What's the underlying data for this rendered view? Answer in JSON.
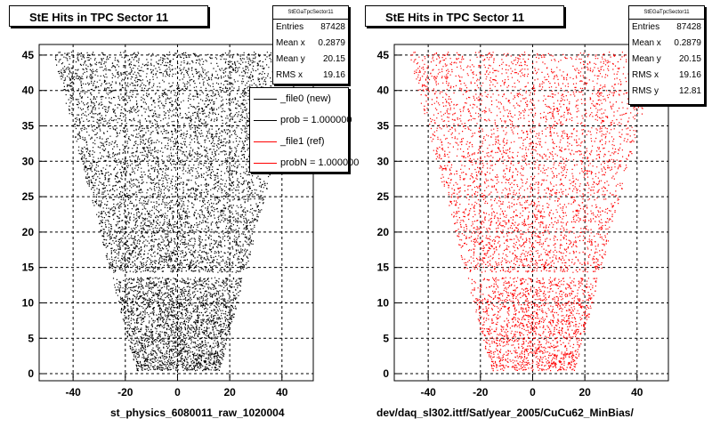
{
  "chart_data": [
    {
      "type": "scatter",
      "title": "StE Hits in TPC Sector 11",
      "xlim": [
        -53,
        52
      ],
      "ylim": [
        -1,
        46.5
      ],
      "x_ticks": [
        -40,
        -20,
        0,
        20,
        40
      ],
      "y_ticks": [
        0,
        5,
        10,
        15,
        20,
        25,
        30,
        35,
        40,
        45
      ],
      "x_tick_labels": [
        "-40",
        "-20",
        "0",
        "20",
        "40"
      ],
      "y_tick_labels": [
        "0",
        "5",
        "10",
        "15",
        "20",
        "25",
        "30",
        "35",
        "40",
        "45"
      ],
      "grid": true,
      "marker_color": "#000000",
      "region": {
        "y_bottom": 0.5,
        "y_top": 45.5,
        "x_half_width_bottom": 16,
        "x_half_width_top": 48,
        "gap_y": 13.2
      },
      "stats": {
        "header": "StEGaTpcSector11",
        "rows": [
          {
            "label": "Entries",
            "value": "87428"
          },
          {
            "label": "Mean x",
            "value": "0.2879"
          },
          {
            "label": "Mean y",
            "value": "20.15"
          },
          {
            "label": "RMS x",
            "value": "19.16"
          }
        ]
      },
      "legend": {
        "entries": [
          {
            "label": "_file0 (new)",
            "color": "#000000"
          },
          {
            "label": "prob = 1.000000",
            "color": "#000000"
          },
          {
            "label": "_file1 (ref)",
            "color": "#ff0000"
          },
          {
            "label": "probN = 1.000000",
            "color": "#ff0000"
          }
        ]
      },
      "footer": "st_physics_6080011_raw_1020004"
    },
    {
      "type": "scatter",
      "title": "StE Hits in TPC Sector 11",
      "xlim": [
        -53,
        52
      ],
      "ylim": [
        -1,
        46.5
      ],
      "x_ticks": [
        -40,
        -20,
        0,
        20,
        40
      ],
      "y_ticks": [
        0,
        5,
        10,
        15,
        20,
        25,
        30,
        35,
        40,
        45
      ],
      "x_tick_labels": [
        "-40",
        "-20",
        "0",
        "20",
        "40"
      ],
      "y_tick_labels": [
        "0",
        "5",
        "10",
        "15",
        "20",
        "25",
        "30",
        "35",
        "40",
        "45"
      ],
      "grid": true,
      "marker_color": "#ff0000",
      "region": {
        "y_bottom": 0.5,
        "y_top": 45.5,
        "x_half_width_bottom": 16,
        "x_half_width_top": 48,
        "gap_y": 13.2
      },
      "stats": {
        "header": "StEGaTpcSector11",
        "rows": [
          {
            "label": "Entries",
            "value": "87428"
          },
          {
            "label": "Mean x",
            "value": "0.2879"
          },
          {
            "label": "Mean y",
            "value": "20.15"
          },
          {
            "label": "RMS x",
            "value": "19.16"
          },
          {
            "label": "RMS y",
            "value": "12.81"
          }
        ]
      },
      "footer": "dev/daq_sl302.ittf/Sat/year_2005/CuCu62_MinBias/"
    }
  ]
}
